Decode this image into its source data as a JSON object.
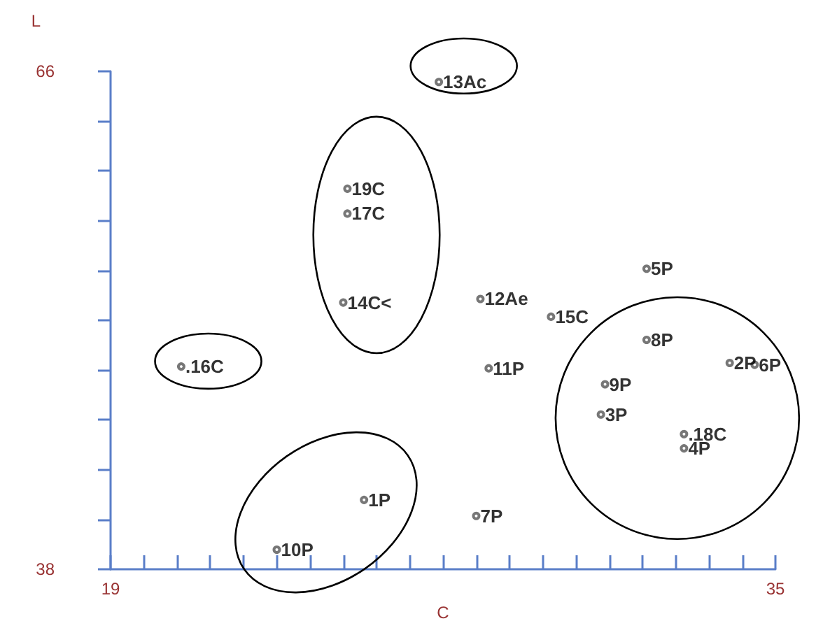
{
  "chart_data": {
    "type": "scatter",
    "xlabel": "C",
    "ylabel": "L",
    "marker": "circle",
    "grid": false,
    "color": "#555555",
    "x": [
      26.9,
      24.7,
      24.7,
      24.6,
      27.9,
      28.1,
      20.7,
      25.1,
      23.0,
      27.8,
      31.9,
      29.6,
      31.9,
      33.9,
      34.5,
      30.9,
      30.8,
      32.8,
      32.8
    ],
    "values": [
      65.4,
      59.4,
      58.0,
      53.0,
      53.2,
      49.3,
      49.4,
      41.9,
      39.1,
      41.0,
      54.9,
      52.2,
      50.9,
      49.6,
      49.5,
      48.4,
      46.7,
      45.6,
      44.8
    ],
    "xlim": [
      19,
      35
    ],
    "xticks": [
      19,
      {
        "value": 19.8,
        "label": null
      },
      {
        "value": 20.6,
        "label": null
      },
      {
        "value": 21.4,
        "label": null
      },
      {
        "value": 22.2,
        "label": null
      },
      {
        "value": 23,
        "label": null
      },
      {
        "value": 23.8,
        "label": null
      },
      {
        "value": 24.6,
        "label": null
      },
      {
        "value": 25.4,
        "label": null
      },
      {
        "value": 26.2,
        "label": null
      },
      {
        "value": 27,
        "label": null
      },
      {
        "value": 27.8,
        "label": null
      },
      {
        "value": 28.6,
        "label": null
      },
      {
        "value": 29.4,
        "label": null
      },
      {
        "value": 30.2,
        "label": null
      },
      {
        "value": 31,
        "label": null
      },
      {
        "value": 31.8,
        "label": null
      },
      {
        "value": 32.6,
        "label": null
      },
      {
        "value": 33.4,
        "label": null
      },
      {
        "value": 34.2,
        "label": null
      },
      35
    ],
    "ylim": [
      38,
      66
    ],
    "yticks": [
      38,
      {
        "value": 40.8,
        "label": null
      },
      {
        "value": 43.6,
        "label": null
      },
      {
        "value": 46.4,
        "label": null
      },
      {
        "value": 49.2,
        "label": null
      },
      {
        "value": 52,
        "label": null
      },
      {
        "value": 54.8,
        "label": null
      },
      {
        "value": 57.6,
        "label": null
      },
      {
        "value": 60.4,
        "label": null
      },
      {
        "value": 63.2,
        "label": null
      },
      66
    ],
    "annotations": [
      {
        "text": "13Ac",
        "x": 26.9,
        "y": 65.4
      },
      {
        "text": "19C",
        "x": 24.7,
        "y": 59.4
      },
      {
        "text": "17C",
        "x": 24.7,
        "y": 58.0
      },
      {
        "text": "14C<",
        "x": 24.6,
        "y": 53.0
      },
      {
        "text": "12Ae",
        "x": 27.9,
        "y": 53.2
      },
      {
        "text": "11P",
        "x": 28.1,
        "y": 49.3
      },
      {
        "text": ".16C",
        "x": 20.7,
        "y": 49.4
      },
      {
        "text": "1P",
        "x": 25.1,
        "y": 41.9
      },
      {
        "text": "10P",
        "x": 23.0,
        "y": 39.1
      },
      {
        "text": "7P",
        "x": 27.8,
        "y": 41.0
      },
      {
        "text": "5P",
        "x": 31.9,
        "y": 54.9
      },
      {
        "text": "15C",
        "x": 29.6,
        "y": 52.2
      },
      {
        "text": "8P",
        "x": 31.9,
        "y": 50.9
      },
      {
        "text": "2P",
        "x": 33.9,
        "y": 49.6
      },
      {
        "text": "6P",
        "x": 34.5,
        "y": 49.5
      },
      {
        "text": "9P",
        "x": 30.9,
        "y": 48.4
      },
      {
        "text": "3P",
        "x": 30.8,
        "y": 46.7
      },
      {
        "text": ".18C",
        "x": 32.8,
        "y": 45.6
      },
      {
        "text": "4P",
        "x": 32.8,
        "y": 44.8
      }
    ]
  }
}
